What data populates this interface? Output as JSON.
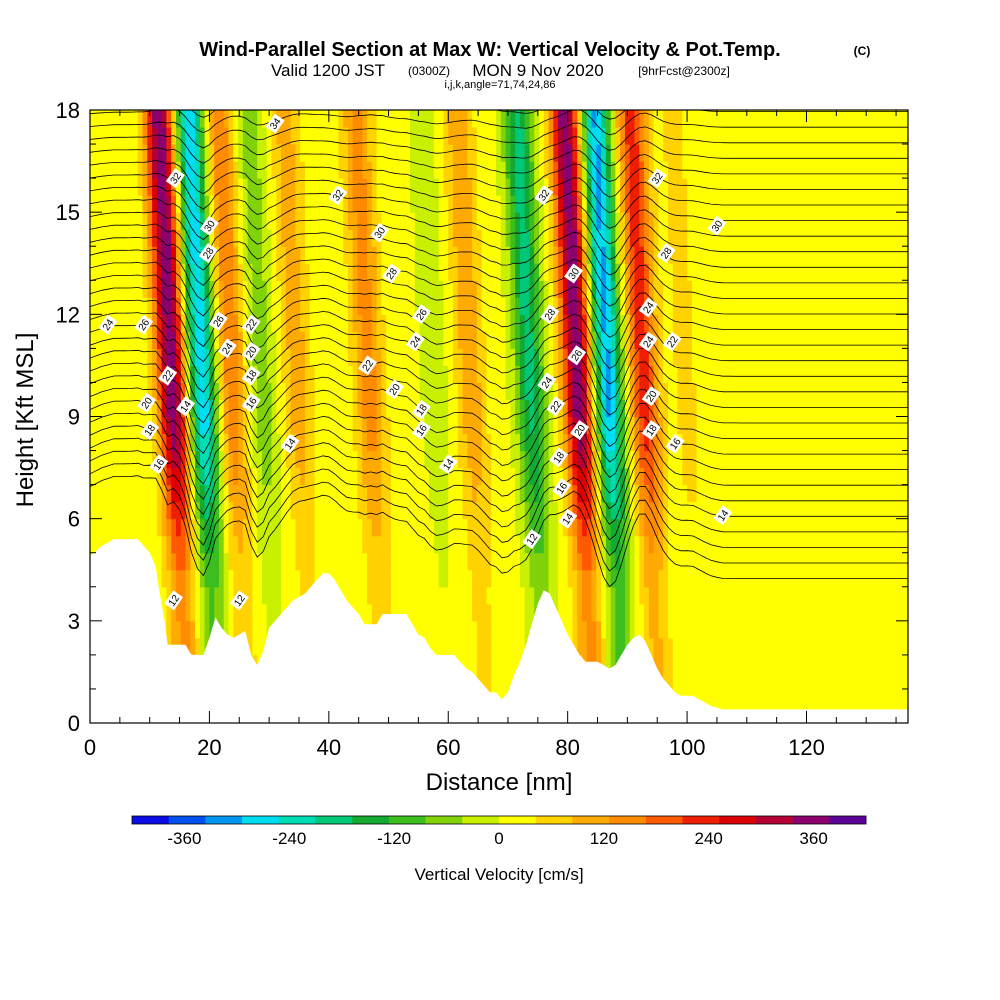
{
  "chart_data": {
    "type": "heatmap",
    "title": "Wind-Parallel Section at Max W: Vertical Velocity & Pot.Temp.",
    "title_mark": "(C)",
    "subtitle_parts": [
      "Valid 1200 JST",
      "(0300Z)",
      "MON 9 Nov 2020",
      "[9hrFcst@2300z]"
    ],
    "subtitle2": "i,j,k,angle=71,74,24,86",
    "xlabel": "Distance [nm]",
    "ylabel": "Height [Kft MSL]",
    "xlim": [
      0,
      137
    ],
    "ylim": [
      0,
      18
    ],
    "xticks": [
      0,
      20,
      40,
      60,
      80,
      100,
      120
    ],
    "yticks": [
      0,
      3,
      6,
      9,
      12,
      15,
      18
    ],
    "colorbar": {
      "label": "Vertical Velocity [cm/s]",
      "ticks": [
        -360,
        -240,
        -120,
        0,
        120,
        240,
        360
      ],
      "colors": [
        "#0a0ae6",
        "#0050f0",
        "#0096f0",
        "#00dcf0",
        "#00dcb4",
        "#00c878",
        "#14aa32",
        "#3cbe1e",
        "#82d20a",
        "#c8f000",
        "#ffff00",
        "#ffd200",
        "#ffaa00",
        "#ff8c00",
        "#ff5a00",
        "#f01e00",
        "#dc0000",
        "#b40032",
        "#8c006e",
        "#5a0096"
      ]
    },
    "velocity_cores": [
      {
        "x": 14,
        "w": 360
      },
      {
        "x": 19,
        "w": -300
      },
      {
        "x": 24,
        "w": 150
      },
      {
        "x": 29,
        "w": -80
      },
      {
        "x": 35,
        "w": 90
      },
      {
        "x": 47,
        "w": 130
      },
      {
        "x": 58,
        "w": -40
      },
      {
        "x": 64,
        "w": 100
      },
      {
        "x": 74,
        "w": -200
      },
      {
        "x": 82,
        "w": 360
      },
      {
        "x": 87,
        "w": -320
      },
      {
        "x": 93,
        "w": 220
      },
      {
        "x": 100,
        "w": 40
      }
    ],
    "contour_labels": [
      {
        "x": 31,
        "y": 17.6,
        "t": "34"
      },
      {
        "x": 14.3,
        "y": 16.0,
        "t": "32"
      },
      {
        "x": 41.5,
        "y": 15.5,
        "t": "32"
      },
      {
        "x": 76,
        "y": 15.5,
        "t": "32"
      },
      {
        "x": 95,
        "y": 16.0,
        "t": "32"
      },
      {
        "x": 20,
        "y": 14.6,
        "t": "30"
      },
      {
        "x": 48.5,
        "y": 14.4,
        "t": "30"
      },
      {
        "x": 81,
        "y": 13.2,
        "t": "30"
      },
      {
        "x": 105,
        "y": 14.6,
        "t": "30"
      },
      {
        "x": 19.8,
        "y": 13.8,
        "t": "28"
      },
      {
        "x": 50.5,
        "y": 13.2,
        "t": "28"
      },
      {
        "x": 77,
        "y": 12.0,
        "t": "28"
      },
      {
        "x": 96.5,
        "y": 13.8,
        "t": "28"
      },
      {
        "x": 9,
        "y": 11.7,
        "t": "26"
      },
      {
        "x": 21.5,
        "y": 11.8,
        "t": "26"
      },
      {
        "x": 55.5,
        "y": 12.0,
        "t": "26"
      },
      {
        "x": 81.5,
        "y": 10.8,
        "t": "26"
      },
      {
        "x": 3,
        "y": 11.7,
        "t": "24"
      },
      {
        "x": 23,
        "y": 11.0,
        "t": "24"
      },
      {
        "x": 54.5,
        "y": 11.2,
        "t": "24"
      },
      {
        "x": 76.5,
        "y": 10.0,
        "t": "24"
      },
      {
        "x": 93.5,
        "y": 12.2,
        "t": "24"
      },
      {
        "x": 93.5,
        "y": 11.2,
        "t": "24"
      },
      {
        "x": 27,
        "y": 11.7,
        "t": "22"
      },
      {
        "x": 13,
        "y": 10.2,
        "t": "22"
      },
      {
        "x": 46.5,
        "y": 10.5,
        "t": "22"
      },
      {
        "x": 78,
        "y": 9.3,
        "t": "22"
      },
      {
        "x": 97.5,
        "y": 11.2,
        "t": "22"
      },
      {
        "x": 27,
        "y": 10.9,
        "t": "20"
      },
      {
        "x": 9.5,
        "y": 9.4,
        "t": "20"
      },
      {
        "x": 51,
        "y": 9.8,
        "t": "20"
      },
      {
        "x": 82,
        "y": 8.6,
        "t": "20"
      },
      {
        "x": 94,
        "y": 9.6,
        "t": "20"
      },
      {
        "x": 27,
        "y": 10.2,
        "t": "18"
      },
      {
        "x": 10,
        "y": 8.6,
        "t": "18"
      },
      {
        "x": 55.5,
        "y": 9.2,
        "t": "18"
      },
      {
        "x": 78.5,
        "y": 7.8,
        "t": "18"
      },
      {
        "x": 94,
        "y": 8.6,
        "t": "18"
      },
      {
        "x": 27,
        "y": 9.4,
        "t": "16"
      },
      {
        "x": 11.5,
        "y": 7.6,
        "t": "16"
      },
      {
        "x": 55.5,
        "y": 8.6,
        "t": "16"
      },
      {
        "x": 79,
        "y": 6.9,
        "t": "16"
      },
      {
        "x": 98,
        "y": 8.2,
        "t": "16"
      },
      {
        "x": 16,
        "y": 9.3,
        "t": "14"
      },
      {
        "x": 33.5,
        "y": 8.2,
        "t": "14"
      },
      {
        "x": 60,
        "y": 7.6,
        "t": "14"
      },
      {
        "x": 80,
        "y": 6.0,
        "t": "14"
      },
      {
        "x": 106,
        "y": 6.1,
        "t": "14"
      },
      {
        "x": 14,
        "y": 3.6,
        "t": "12"
      },
      {
        "x": 25,
        "y": 3.6,
        "t": "12"
      },
      {
        "x": 74,
        "y": 5.4,
        "t": "12"
      }
    ],
    "terrain": [
      [
        0,
        4.9
      ],
      [
        2,
        5.2
      ],
      [
        4,
        5.4
      ],
      [
        6,
        5.4
      ],
      [
        8,
        5.4
      ],
      [
        10,
        5.0
      ],
      [
        11,
        4.6
      ],
      [
        11.5,
        4.0
      ],
      [
        12,
        3.5
      ],
      [
        12.5,
        3.0
      ],
      [
        13,
        2.3
      ],
      [
        16,
        2.3
      ],
      [
        17,
        2.0
      ],
      [
        19,
        2.0
      ],
      [
        20,
        2.5
      ],
      [
        21,
        3.1
      ],
      [
        22,
        2.8
      ],
      [
        23,
        2.6
      ],
      [
        24,
        2.5
      ],
      [
        25,
        2.6
      ],
      [
        26,
        2.7
      ],
      [
        27,
        2.0
      ],
      [
        28,
        1.7
      ],
      [
        29,
        2.1
      ],
      [
        30,
        2.8
      ],
      [
        32,
        3.2
      ],
      [
        33,
        3.4
      ],
      [
        34,
        3.6
      ],
      [
        36,
        3.8
      ],
      [
        37,
        4.0
      ],
      [
        38,
        4.2
      ],
      [
        39,
        4.4
      ],
      [
        40,
        4.4
      ],
      [
        41,
        4.2
      ],
      [
        42,
        3.9
      ],
      [
        43,
        3.6
      ],
      [
        44,
        3.4
      ],
      [
        45,
        3.2
      ],
      [
        46,
        2.9
      ],
      [
        48,
        2.9
      ],
      [
        49,
        3.2
      ],
      [
        50,
        3.2
      ],
      [
        53,
        3.2
      ],
      [
        54,
        2.9
      ],
      [
        55,
        2.6
      ],
      [
        56,
        2.5
      ],
      [
        57,
        2.2
      ],
      [
        58,
        2.0
      ],
      [
        61,
        2.0
      ],
      [
        62,
        1.8
      ],
      [
        63,
        1.6
      ],
      [
        64,
        1.5
      ],
      [
        65,
        1.3
      ],
      [
        66,
        1.1
      ],
      [
        67,
        0.9
      ],
      [
        68,
        0.9
      ],
      [
        69,
        0.7
      ],
      [
        70,
        0.9
      ],
      [
        71,
        1.4
      ],
      [
        72,
        1.8
      ],
      [
        73,
        2.3
      ],
      [
        74,
        2.9
      ],
      [
        75,
        3.5
      ],
      [
        76,
        3.9
      ],
      [
        77,
        3.8
      ],
      [
        78,
        3.4
      ],
      [
        79,
        3.0
      ],
      [
        80,
        2.6
      ],
      [
        81,
        2.3
      ],
      [
        82,
        2.0
      ],
      [
        83,
        1.8
      ],
      [
        85,
        1.8
      ],
      [
        86,
        1.7
      ],
      [
        87,
        1.6
      ],
      [
        88,
        1.7
      ],
      [
        89,
        2.0
      ],
      [
        90,
        2.3
      ],
      [
        91,
        2.5
      ],
      [
        92,
        2.6
      ],
      [
        93,
        2.4
      ],
      [
        94,
        2.0
      ],
      [
        95,
        1.6
      ],
      [
        96,
        1.3
      ],
      [
        97,
        1.1
      ],
      [
        98,
        0.9
      ],
      [
        99,
        0.8
      ],
      [
        101,
        0.8
      ],
      [
        102,
        0.7
      ],
      [
        103,
        0.6
      ],
      [
        104,
        0.5
      ],
      [
        106,
        0.4
      ],
      [
        137,
        0.4
      ]
    ]
  }
}
